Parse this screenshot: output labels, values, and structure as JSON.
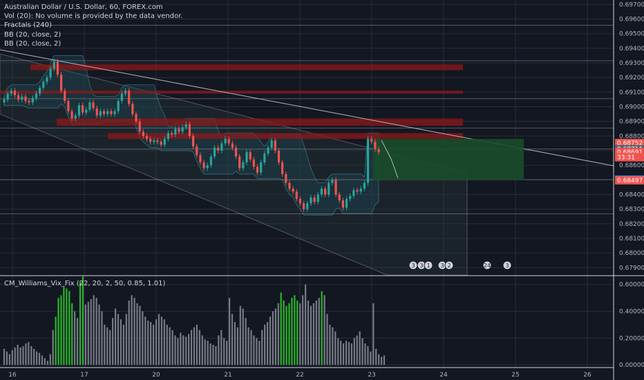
{
  "legend": {
    "title": "Australian Dollar / U.S. Dollar, 60, FOREX.com",
    "vol": "Vol (20): No volume is provided by the data vendor.",
    "fractals": "Fractals (240)",
    "bb1": "BB (20, close, 2)",
    "bb2": "BB (20, close, 2)"
  },
  "indicator_label": "CM_Williams_Vix_Fix (22, 20, 2, 50, 0.85, 1.01)",
  "colors": {
    "background": "#131722",
    "up": "#26a69a",
    "down": "#ef5350",
    "zone": "#8b1a1a",
    "target_box": "#1b4d2b",
    "vix_green": "#2bb52b",
    "vix_gray": "#787b86",
    "grid": "#2a2e39"
  },
  "chart_data": [
    {
      "type": "candlestick",
      "title": "Australian Dollar / U.S. Dollar, 60, FOREX.com",
      "x_tick_labels": [
        "16",
        "17",
        "20",
        "21",
        "22",
        "23",
        "24",
        "25",
        "26"
      ],
      "y_ticks": [
        0.697,
        0.696,
        0.695,
        0.694,
        0.693,
        0.692,
        0.691,
        0.69,
        0.689,
        0.688,
        0.687,
        0.686,
        0.685,
        0.684,
        0.683,
        0.682,
        0.681,
        0.68,
        0.679
      ],
      "y_tick_labels": [
        "0.69700",
        "0.69600",
        "0.69500",
        "0.69400",
        "0.69300",
        "0.69200",
        "0.69100",
        "0.69000",
        "0.68900",
        "0.68800",
        "0.68700",
        "0.68600",
        "0.68500",
        "0.68400",
        "0.68300",
        "0.68200",
        "0.68100",
        "0.68000",
        "0.67900"
      ],
      "ylim": [
        0.6785,
        0.6973
      ],
      "price_tags": [
        {
          "label": "0.68752",
          "value": 0.68752,
          "color": "#ef5350"
        },
        {
          "label": "0.68711",
          "value": 0.68711,
          "color": "#5d606b"
        },
        {
          "label": "0.68691",
          "value": 0.68691,
          "color": "#ef5350"
        },
        {
          "label": "33:31",
          "value": 0.68655,
          "color": "#ef5350"
        },
        {
          "label": "0.68502",
          "value": 0.68502,
          "color": "#2196f3"
        },
        {
          "label": "0.68497",
          "value": 0.68497,
          "color": "#ef5350"
        }
      ],
      "horizontal_levels": [
        0.69557,
        0.69315,
        0.69055,
        0.68855,
        0.68711,
        0.68502,
        0.68268
      ],
      "resistance_zones": [
        {
          "top": 0.6929,
          "bottom": 0.6925
        },
        {
          "top": 0.6911,
          "bottom": 0.6909
        },
        {
          "top": 0.6892,
          "bottom": 0.6887
        },
        {
          "top": 0.6882,
          "bottom": 0.6878
        }
      ],
      "target_box": {
        "top": 0.6878,
        "bottom": 0.685
      },
      "event_badges": [
        "3",
        "3",
        "1",
        "3",
        "2",
        "24",
        "3"
      ],
      "closes": [
        0.6905,
        0.6909,
        0.6911,
        0.6908,
        0.6905,
        0.6907,
        0.6904,
        0.6903,
        0.6906,
        0.6909,
        0.6913,
        0.6917,
        0.692,
        0.6926,
        0.6931,
        0.6922,
        0.6911,
        0.6904,
        0.6897,
        0.6892,
        0.6894,
        0.6901,
        0.6896,
        0.6898,
        0.6903,
        0.6899,
        0.6894,
        0.6897,
        0.6895,
        0.6897,
        0.6895,
        0.6897,
        0.6904,
        0.6909,
        0.6911,
        0.6902,
        0.6895,
        0.689,
        0.6883,
        0.688,
        0.6878,
        0.6876,
        0.6877,
        0.6876,
        0.6874,
        0.6878,
        0.6882,
        0.6881,
        0.6885,
        0.6883,
        0.6886,
        0.6888,
        0.688,
        0.6873,
        0.6867,
        0.6862,
        0.6858,
        0.686,
        0.6866,
        0.6872,
        0.687,
        0.6875,
        0.6878,
        0.6875,
        0.6872,
        0.6866,
        0.6858,
        0.6862,
        0.6869,
        0.6864,
        0.6859,
        0.6855,
        0.6862,
        0.6868,
        0.6872,
        0.6877,
        0.687,
        0.6862,
        0.6854,
        0.6848,
        0.6844,
        0.6842,
        0.6837,
        0.6834,
        0.683,
        0.6834,
        0.6838,
        0.6835,
        0.684,
        0.6844,
        0.684,
        0.6848,
        0.685,
        0.684,
        0.6836,
        0.6831,
        0.6837,
        0.6839,
        0.6843,
        0.6842,
        0.6844,
        0.6848,
        0.6878,
        0.6876,
        0.6871,
        0.6869
      ]
    },
    {
      "type": "bar",
      "title": "CM_Williams_Vix_Fix (22, 20, 2, 50, 0.85, 1.01)",
      "y_ticks": [
        0.0,
        0.2,
        0.4,
        0.6
      ],
      "y_tick_labels": [
        "0.00000",
        "0.20000",
        "0.40000",
        "0.60000"
      ],
      "ylim": [
        -0.02,
        0.65
      ],
      "green_ranges": [
        [
          19,
          25
        ],
        [
          28,
          29
        ],
        [
          102,
          108
        ],
        [
          117,
          117
        ]
      ],
      "values": [
        0.12,
        0.1,
        0.08,
        0.11,
        0.13,
        0.15,
        0.13,
        0.14,
        0.16,
        0.17,
        0.14,
        0.12,
        0.1,
        0.09,
        0.07,
        0.05,
        0.03,
        0.08,
        0.26,
        0.36,
        0.5,
        0.52,
        0.58,
        0.57,
        0.55,
        0.46,
        0.4,
        0.35,
        0.62,
        0.66,
        0.45,
        0.47,
        0.49,
        0.52,
        0.5,
        0.45,
        0.4,
        0.3,
        0.28,
        0.26,
        0.35,
        0.42,
        0.38,
        0.34,
        0.3,
        0.38,
        0.48,
        0.52,
        0.5,
        0.46,
        0.44,
        0.4,
        0.36,
        0.33,
        0.32,
        0.3,
        0.34,
        0.38,
        0.36,
        0.34,
        0.3,
        0.28,
        0.26,
        0.22,
        0.2,
        0.24,
        0.22,
        0.21,
        0.23,
        0.26,
        0.28,
        0.3,
        0.26,
        0.22,
        0.19,
        0.18,
        0.16,
        0.15,
        0.14,
        0.22,
        0.26,
        0.2,
        0.18,
        0.5,
        0.38,
        0.32,
        0.28,
        0.44,
        0.42,
        0.35,
        0.28,
        0.26,
        0.22,
        0.2,
        0.18,
        0.26,
        0.3,
        0.32,
        0.36,
        0.4,
        0.42,
        0.46,
        0.54,
        0.48,
        0.44,
        0.46,
        0.5,
        0.52,
        0.48,
        0.46,
        0.52,
        0.6,
        0.48,
        0.44,
        0.46,
        0.48,
        0.5,
        0.55,
        0.52,
        0.38,
        0.3,
        0.28,
        0.25,
        0.2,
        0.18,
        0.16,
        0.18,
        0.17,
        0.16,
        0.2,
        0.22,
        0.25,
        0.2,
        0.16,
        0.14,
        0.1,
        0.46,
        0.12,
        0.08,
        0.06,
        0.07
      ]
    }
  ]
}
